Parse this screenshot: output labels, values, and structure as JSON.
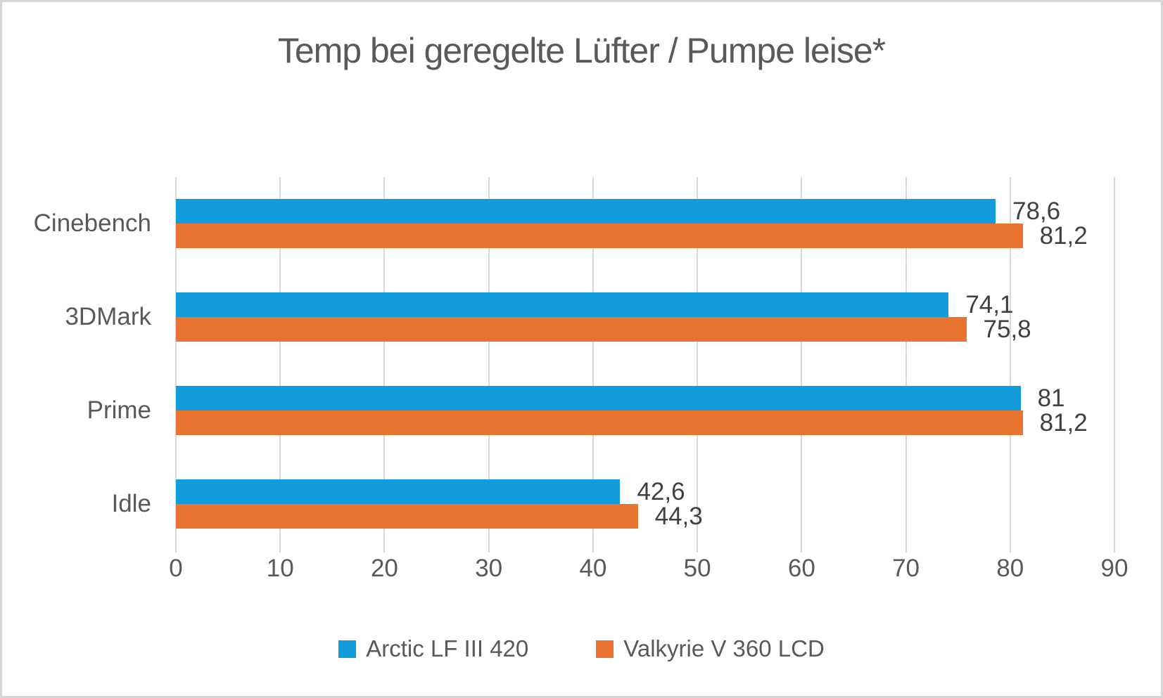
{
  "chart_data": {
    "type": "bar",
    "orientation": "horizontal",
    "title": "Temp bei geregelte Lüfter / Pumpe leise*",
    "categories": [
      "Cinebench",
      "3DMark",
      "Prime",
      "Idle"
    ],
    "series": [
      {
        "name": "Arctic LF III 420",
        "color": "#129cdb",
        "values": [
          78.6,
          74.1,
          81,
          42.6
        ],
        "value_labels": [
          "78,6",
          "74,1",
          "81",
          "42,6"
        ]
      },
      {
        "name": "Valkyrie V 360 LCD",
        "color": "#e97432",
        "values": [
          81.2,
          75.8,
          81.2,
          44.3
        ],
        "value_labels": [
          "81,2",
          "75,8",
          "81,2",
          "44,3"
        ]
      }
    ],
    "xlabel": "",
    "ylabel": "",
    "xlim": [
      0,
      90
    ],
    "x_ticks": [
      "0",
      "10",
      "20",
      "30",
      "40",
      "50",
      "60",
      "70",
      "80",
      "90"
    ],
    "grid": true,
    "legend_position": "bottom",
    "data_labels": true
  },
  "colors": {
    "gridline": "#d9d9d9",
    "axis_text": "#595959",
    "category_text": "#595959",
    "data_label_text": "#404040",
    "title_text": "#595959",
    "legend_text": "#595959",
    "frame_border": "#d6d6d6",
    "background": "#ffffff"
  }
}
